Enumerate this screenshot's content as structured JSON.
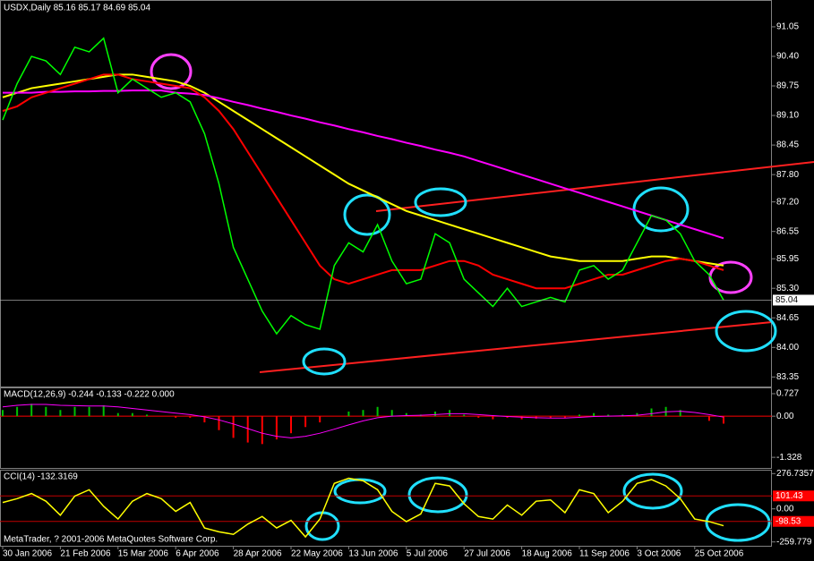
{
  "chart_data": [
    {
      "type": "line",
      "title": "USDX,Daily  85.16 85.17 84.69 85.04",
      "categories": [
        "30 Jan 2006",
        null,
        null,
        null,
        "21 Feb 2006",
        null,
        null,
        null,
        "15 Mar 2006",
        null,
        null,
        null,
        "6 Apr 2006",
        null,
        null,
        null,
        "28 Apr 2006",
        null,
        null,
        null,
        "22 May 2006",
        null,
        null,
        null,
        "13 Jun 2006",
        null,
        null,
        null,
        "5 Jul 2006",
        null,
        null,
        null,
        "27 Jul 2006",
        null,
        null,
        null,
        "18 Aug 2006",
        null,
        null,
        null,
        "11 Sep 2006",
        null,
        null,
        null,
        "3 Oct 2006",
        null,
        null,
        null,
        "25 Oct 2006",
        null,
        null
      ],
      "series": [
        {
          "color": "#ffff00",
          "values": [
            89.5,
            89.6,
            89.7,
            89.75,
            89.8,
            89.85,
            89.9,
            89.95,
            90.0,
            90.0,
            89.95,
            89.9,
            89.85,
            89.75,
            89.6,
            89.4,
            89.2,
            89.0,
            88.8,
            88.6,
            88.4,
            88.2,
            88.0,
            87.8,
            87.6,
            87.45,
            87.3,
            87.15,
            87.0,
            86.9,
            86.8,
            86.7,
            86.6,
            86.5,
            86.4,
            86.3,
            86.2,
            86.1,
            86.0,
            85.95,
            85.9,
            85.9,
            85.9,
            85.9,
            85.95,
            86.0,
            86.0,
            85.95,
            85.9,
            85.85,
            85.8
          ]
        },
        {
          "color": "#ff00ff",
          "values": [
            89.6,
            89.6,
            89.6,
            89.62,
            89.62,
            89.63,
            89.63,
            89.64,
            89.64,
            89.65,
            89.65,
            89.65,
            89.6,
            89.58,
            89.55,
            89.48,
            89.4,
            89.33,
            89.25,
            89.18,
            89.1,
            89.03,
            88.95,
            88.88,
            88.8,
            88.73,
            88.65,
            88.58,
            88.5,
            88.43,
            88.35,
            88.28,
            88.2,
            88.1,
            88.0,
            87.9,
            87.8,
            87.7,
            87.6,
            87.5,
            87.4,
            87.3,
            87.2,
            87.1,
            87.0,
            86.9,
            86.8,
            86.7,
            86.6,
            86.5,
            86.4
          ]
        },
        {
          "color": "#ff0000",
          "values": [
            89.2,
            89.3,
            89.5,
            89.6,
            89.7,
            89.8,
            89.9,
            90.0,
            90.0,
            89.9,
            89.85,
            89.8,
            89.75,
            89.7,
            89.5,
            89.2,
            88.8,
            88.3,
            87.8,
            87.3,
            86.8,
            86.3,
            85.8,
            85.5,
            85.4,
            85.5,
            85.6,
            85.7,
            85.7,
            85.7,
            85.8,
            85.9,
            85.9,
            85.8,
            85.6,
            85.5,
            85.4,
            85.3,
            85.3,
            85.3,
            85.4,
            85.5,
            85.6,
            85.6,
            85.7,
            85.8,
            85.9,
            85.95,
            85.9,
            85.8,
            85.7
          ]
        },
        {
          "color": "#00ff00",
          "values": [
            89.0,
            89.8,
            90.4,
            90.3,
            90.0,
            90.6,
            90.5,
            90.8,
            89.6,
            89.9,
            89.7,
            89.5,
            89.6,
            89.4,
            88.7,
            87.6,
            86.2,
            85.5,
            84.8,
            84.3,
            84.7,
            84.5,
            84.4,
            85.8,
            86.3,
            86.1,
            86.7,
            85.9,
            85.4,
            85.5,
            86.5,
            86.3,
            85.5,
            85.2,
            84.9,
            85.3,
            84.9,
            85.0,
            85.1,
            85.0,
            85.7,
            85.8,
            85.5,
            85.7,
            86.3,
            86.9,
            86.8,
            86.5,
            85.9,
            85.6,
            85.04
          ]
        }
      ],
      "last_price": {
        "value": 85.04,
        "label": "85.04"
      },
      "ylim": [
        83.14,
        91.6
      ],
      "yticks": [
        91.05,
        {
          "value": 90.4,
          "label": "90.40"
        },
        89.75,
        {
          "value": 89.1,
          "label": "89.10"
        },
        88.45,
        {
          "value": 87.8,
          "label": "87.80"
        },
        {
          "value": 87.2,
          "label": "87.20"
        },
        86.55,
        85.95,
        {
          "value": 85.3,
          "label": "85.30"
        },
        84.65,
        {
          "value": 84.0,
          "label": "84.00"
        },
        83.35
      ]
    },
    {
      "type": "macd",
      "title": "MACD(12,26,9) -0.244 -0.133 -0.222 0.000",
      "up_color": "#00c000",
      "down_color": "#ff0000",
      "signal_color": "#ff00ff",
      "values": [
        0.2,
        0.3,
        0.4,
        0.3,
        0.2,
        0.3,
        0.3,
        0.35,
        0.1,
        0.1,
        0.05,
        0.0,
        -0.05,
        -0.05,
        -0.2,
        -0.45,
        -0.7,
        -0.85,
        -0.9,
        -0.75,
        -0.55,
        -0.35,
        -0.2,
        0.0,
        0.15,
        0.2,
        0.3,
        0.2,
        0.1,
        0.05,
        0.15,
        0.2,
        0.05,
        -0.05,
        -0.1,
        -0.05,
        -0.1,
        -0.08,
        -0.05,
        -0.05,
        0.05,
        0.1,
        0.05,
        0.05,
        0.1,
        0.25,
        0.3,
        0.2,
        0.0,
        -0.15,
        -0.24
      ],
      "signal": [
        0.3,
        0.35,
        0.38,
        0.38,
        0.35,
        0.34,
        0.33,
        0.33,
        0.3,
        0.25,
        0.2,
        0.15,
        0.1,
        0.05,
        -0.02,
        -0.12,
        -0.25,
        -0.4,
        -0.55,
        -0.65,
        -0.7,
        -0.65,
        -0.55,
        -0.42,
        -0.28,
        -0.15,
        -0.05,
        0.0,
        0.02,
        0.03,
        0.05,
        0.08,
        0.08,
        0.05,
        0.02,
        -0.01,
        -0.03,
        -0.05,
        -0.06,
        -0.06,
        -0.04,
        -0.01,
        0.0,
        0.01,
        0.03,
        0.08,
        0.14,
        0.16,
        0.12,
        0.05,
        -0.03
      ],
      "ylim": [
        -1.7,
        0.9
      ],
      "yticks": [
        0.727,
        {
          "value": 0,
          "label": "0.00"
        },
        -1.328
      ]
    },
    {
      "type": "cci",
      "title": "CCI(14) -132.3169",
      "color": "#ffff00",
      "values": [
        50,
        80,
        120,
        60,
        -50,
        100,
        150,
        20,
        -80,
        60,
        120,
        80,
        -20,
        50,
        -150,
        -180,
        -200,
        -120,
        -60,
        -150,
        -90,
        -220,
        -80,
        200,
        240,
        220,
        150,
        -20,
        -100,
        -40,
        200,
        180,
        40,
        -60,
        -80,
        30,
        -50,
        60,
        70,
        -30,
        150,
        120,
        -30,
        60,
        200,
        230,
        180,
        80,
        -80,
        -100,
        -132.3169
      ],
      "levels": [
        101.43,
        -98.53
      ],
      "ylim": [
        -290,
        300
      ],
      "yticks": [
        276.7357,
        {
          "value": 0,
          "label": "0.00"
        },
        -259.779
      ]
    }
  ],
  "footer": "MetaTrader, ? 2001-2006 MetaQuotes Software Corp."
}
